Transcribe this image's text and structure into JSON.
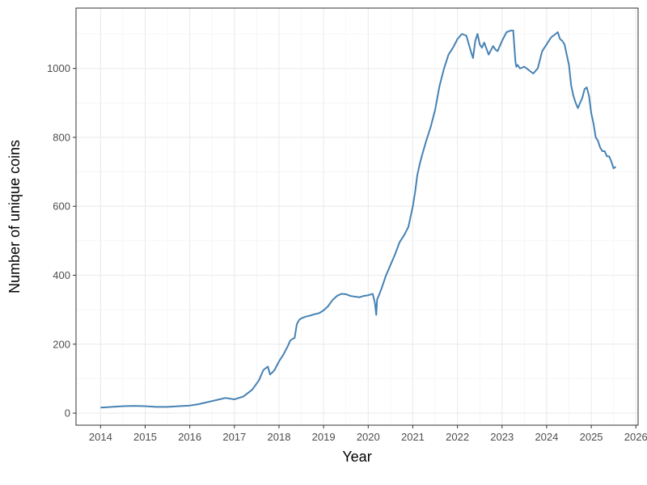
{
  "chart_data": {
    "type": "line",
    "xlabel": "Year",
    "ylabel": "Number of unique coins",
    "xlim": [
      2013.45,
      2026.05
    ],
    "ylim": [
      -35,
      1175
    ],
    "x_ticks": [
      2014,
      2015,
      2016,
      2017,
      2018,
      2019,
      2020,
      2021,
      2022,
      2023,
      2024,
      2025,
      2026
    ],
    "x_tick_labels": [
      "2014",
      "2015",
      "2016",
      "2017",
      "2018",
      "2019",
      "2020",
      "2021",
      "2022",
      "2023",
      "2024",
      "2025",
      "2026"
    ],
    "y_ticks": [
      0,
      200,
      400,
      600,
      800,
      1000
    ],
    "y_tick_labels": [
      "0",
      "200",
      "400",
      "600",
      "800",
      "1000"
    ],
    "grid": true,
    "legend": "none",
    "series": [
      {
        "color": "#4682b4",
        "x": [
          2014.0,
          2014.25,
          2014.5,
          2014.75,
          2015.0,
          2015.25,
          2015.5,
          2015.75,
          2016.0,
          2016.2,
          2016.4,
          2016.6,
          2016.8,
          2017.0,
          2017.2,
          2017.4,
          2017.55,
          2017.65,
          2017.75,
          2017.8,
          2017.85,
          2017.9,
          2018.0,
          2018.1,
          2018.2,
          2018.25,
          2018.3,
          2018.35,
          2018.4,
          2018.45,
          2018.5,
          2018.6,
          2018.7,
          2018.8,
          2018.9,
          2019.0,
          2019.1,
          2019.2,
          2019.3,
          2019.4,
          2019.5,
          2019.6,
          2019.7,
          2019.8,
          2019.9,
          2020.0,
          2020.1,
          2020.15,
          2020.18,
          2020.2,
          2020.25,
          2020.3,
          2020.4,
          2020.5,
          2020.6,
          2020.7,
          2020.8,
          2020.9,
          2021.0,
          2021.05,
          2021.1,
          2021.15,
          2021.2,
          2021.3,
          2021.4,
          2021.5,
          2021.6,
          2021.7,
          2021.8,
          2021.9,
          2022.0,
          2022.1,
          2022.2,
          2022.3,
          2022.35,
          2022.4,
          2022.45,
          2022.5,
          2022.55,
          2022.6,
          2022.7,
          2022.8,
          2022.85,
          2022.9,
          2023.0,
          2023.1,
          2023.2,
          2023.25,
          2023.3,
          2023.32,
          2023.35,
          2023.4,
          2023.5,
          2023.6,
          2023.7,
          2023.8,
          2023.9,
          2024.0,
          2024.1,
          2024.2,
          2024.25,
          2024.3,
          2024.35,
          2024.4,
          2024.5,
          2024.55,
          2024.6,
          2024.65,
          2024.7,
          2024.75,
          2024.8,
          2024.85,
          2024.9,
          2024.95,
          2025.0,
          2025.05,
          2025.1,
          2025.15,
          2025.2,
          2025.25,
          2025.3,
          2025.35,
          2025.4,
          2025.45,
          2025.5,
          2025.55
        ],
        "y": [
          16,
          18,
          20,
          21,
          20,
          18,
          18,
          20,
          22,
          26,
          32,
          38,
          44,
          40,
          48,
          68,
          95,
          125,
          135,
          112,
          118,
          125,
          150,
          170,
          195,
          210,
          215,
          218,
          258,
          270,
          275,
          280,
          283,
          287,
          290,
          298,
          310,
          328,
          340,
          346,
          345,
          340,
          338,
          336,
          340,
          342,
          346,
          320,
          285,
          330,
          345,
          362,
          400,
          430,
          460,
          495,
          515,
          540,
          600,
          640,
          690,
          720,
          745,
          790,
          830,
          880,
          950,
          1000,
          1040,
          1060,
          1085,
          1100,
          1095,
          1050,
          1030,
          1080,
          1100,
          1070,
          1060,
          1075,
          1040,
          1065,
          1055,
          1050,
          1080,
          1105,
          1110,
          1110,
          1020,
          1005,
          1010,
          1000,
          1005,
          995,
          985,
          1000,
          1050,
          1070,
          1090,
          1100,
          1105,
          1085,
          1080,
          1070,
          1010,
          950,
          920,
          900,
          885,
          900,
          915,
          940,
          945,
          920,
          870,
          840,
          800,
          790,
          770,
          760,
          760,
          745,
          745,
          730,
          710,
          715
        ]
      }
    ]
  }
}
